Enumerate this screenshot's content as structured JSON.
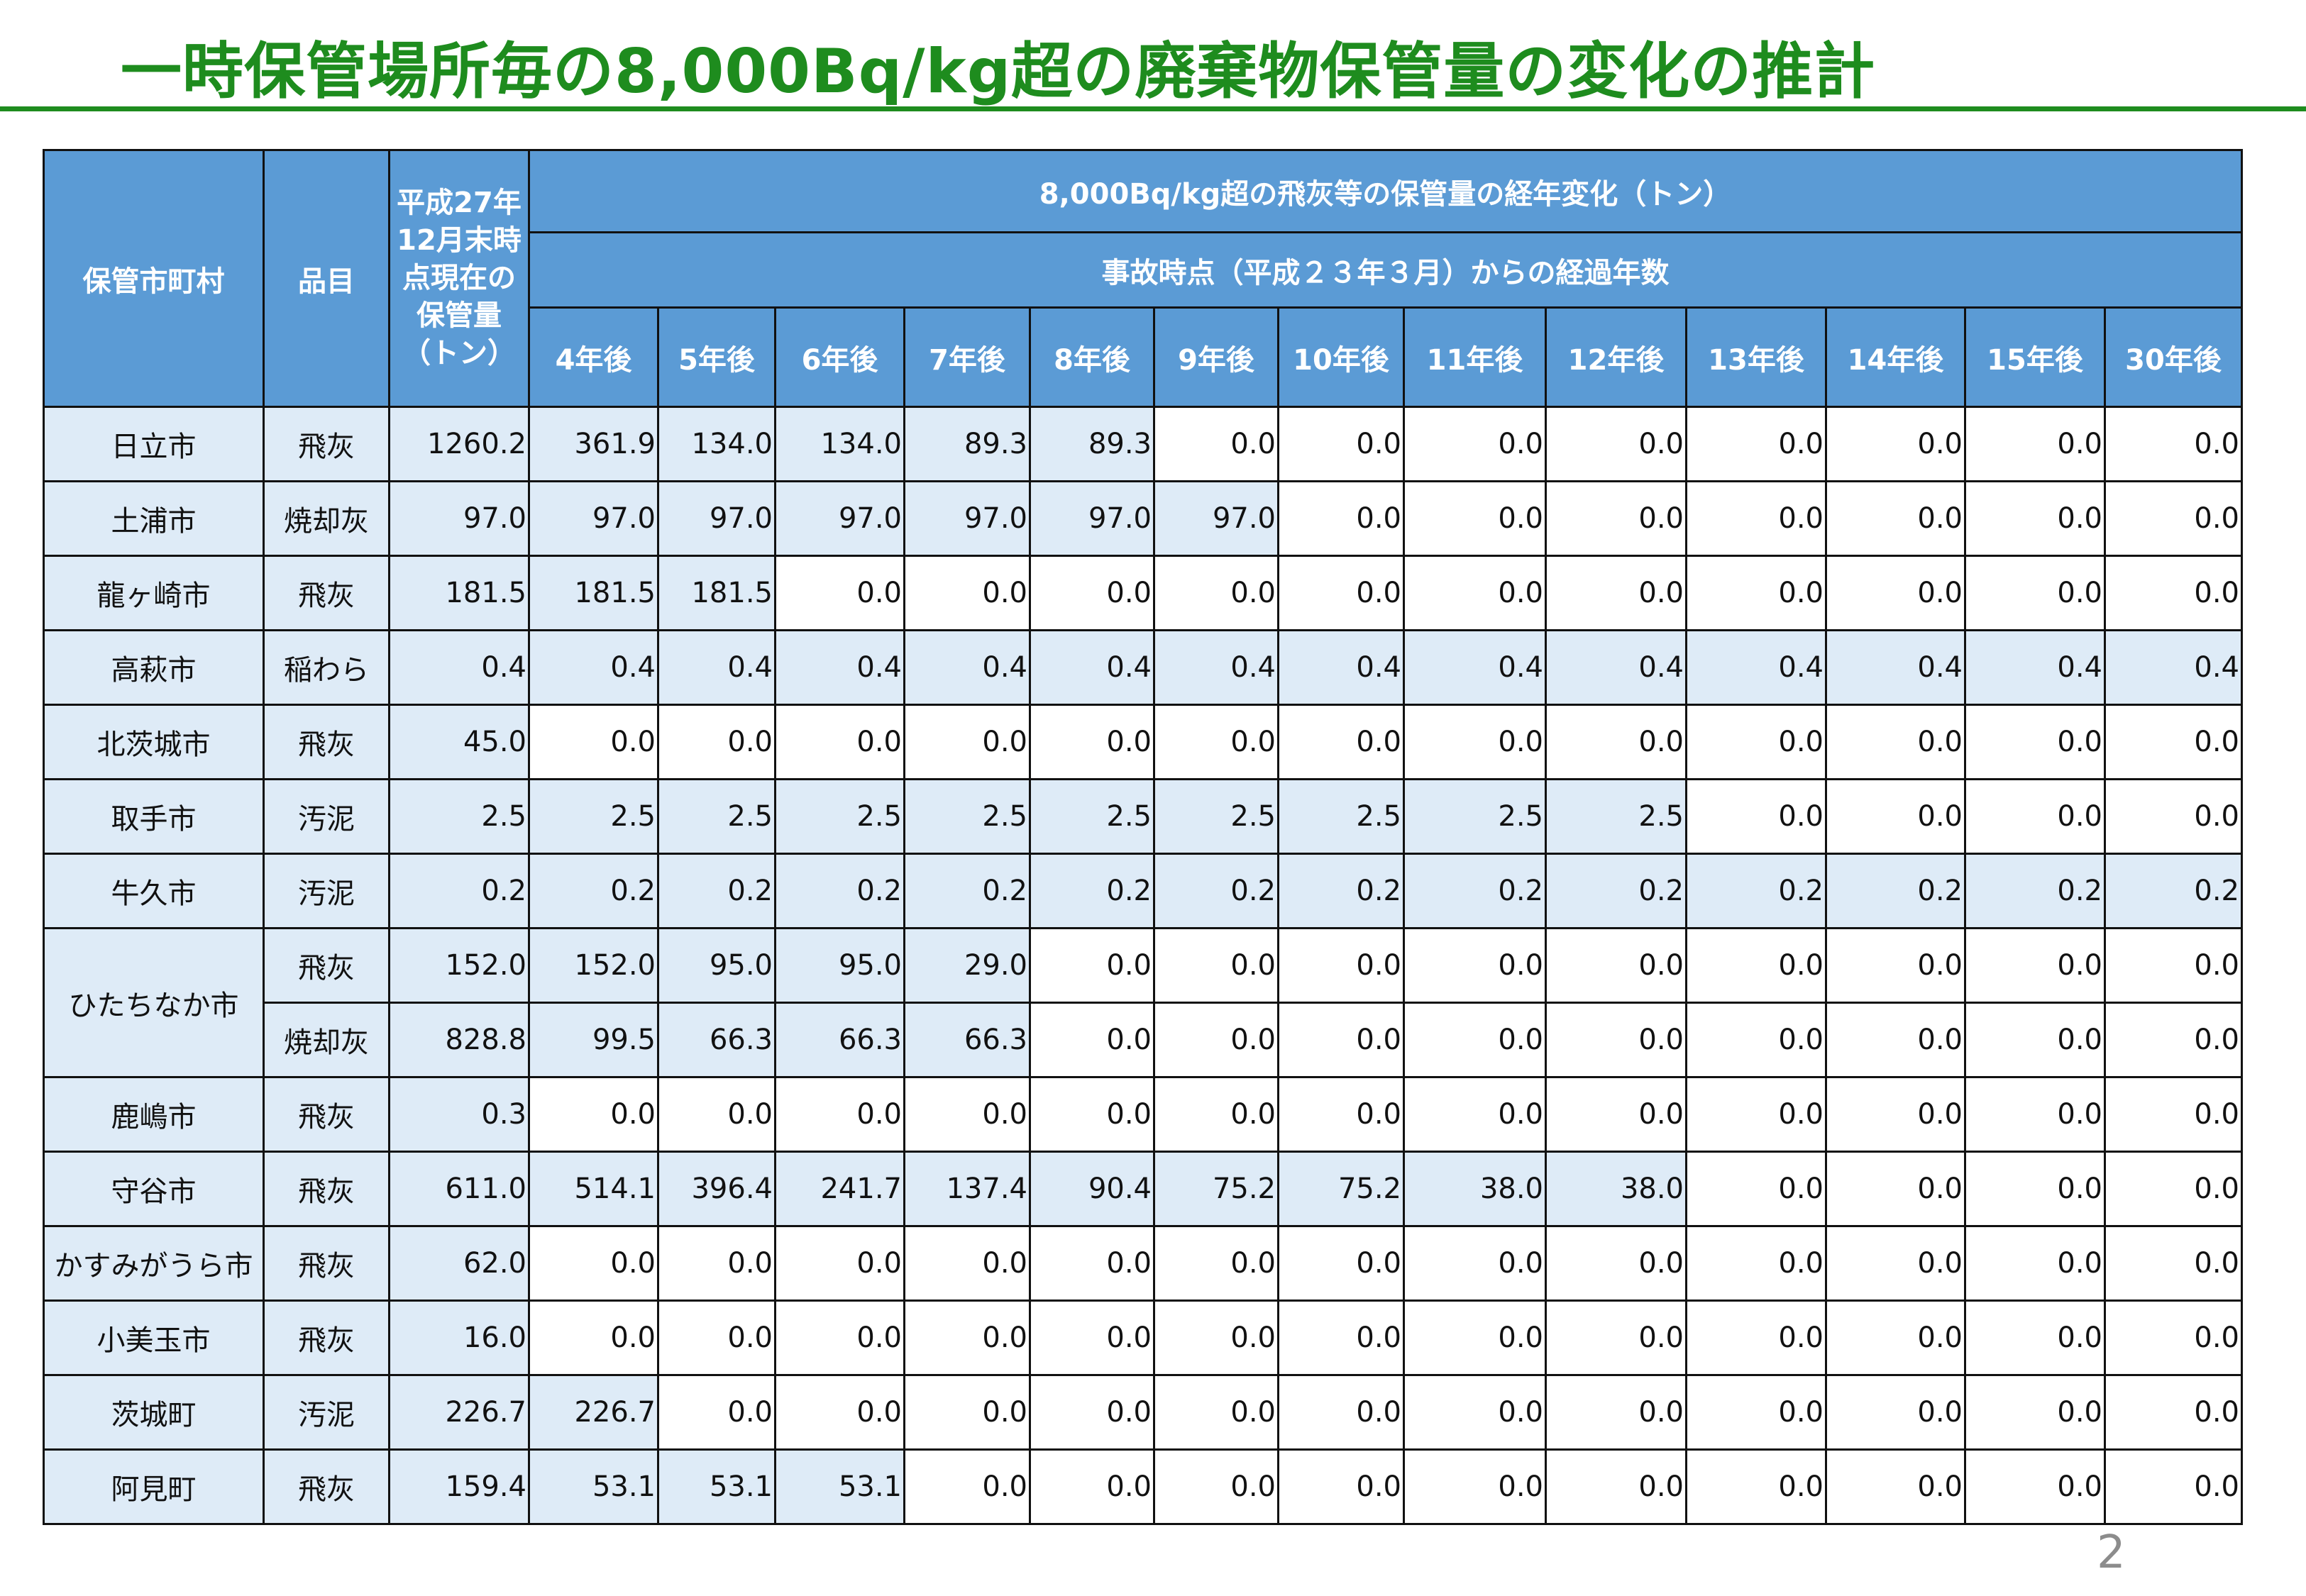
{
  "title": "一時保管場所毎の8,000Bq/kg超の廃棄物保管量の変化の推計",
  "header": {
    "municipality": "保管市町村",
    "item": "品目",
    "stock": "平成27年12月末時点現在の保管量（トン）",
    "group_title": "8,000Bq/kg超の飛灰等の保管量の経年変化（トン）",
    "group_subtitle": "事故時点（平成２３年３月）からの経過年数",
    "years": [
      "4年後",
      "5年後",
      "6年後",
      "7年後",
      "8年後",
      "9年後",
      "10年後",
      "11年後",
      "12年後",
      "13年後",
      "14年後",
      "15年後",
      "30年後"
    ]
  },
  "rows": [
    {
      "municipality": "日立市",
      "item": "飛灰",
      "stock": "1260.2",
      "values": [
        "361.9",
        "134.0",
        "134.0",
        "89.3",
        "89.3",
        "0.0",
        "0.0",
        "0.0",
        "0.0",
        "0.0",
        "0.0",
        "0.0",
        "0.0"
      ]
    },
    {
      "municipality": "土浦市",
      "item": "焼却灰",
      "stock": "97.0",
      "values": [
        "97.0",
        "97.0",
        "97.0",
        "97.0",
        "97.0",
        "97.0",
        "0.0",
        "0.0",
        "0.0",
        "0.0",
        "0.0",
        "0.0",
        "0.0"
      ]
    },
    {
      "municipality": "龍ヶ崎市",
      "item": "飛灰",
      "stock": "181.5",
      "values": [
        "181.5",
        "181.5",
        "0.0",
        "0.0",
        "0.0",
        "0.0",
        "0.0",
        "0.0",
        "0.0",
        "0.0",
        "0.0",
        "0.0",
        "0.0"
      ]
    },
    {
      "municipality": "高萩市",
      "item": "稲わら",
      "stock": "0.4",
      "values": [
        "0.4",
        "0.4",
        "0.4",
        "0.4",
        "0.4",
        "0.4",
        "0.4",
        "0.4",
        "0.4",
        "0.4",
        "0.4",
        "0.4",
        "0.4"
      ]
    },
    {
      "municipality": "北茨城市",
      "item": "飛灰",
      "stock": "45.0",
      "values": [
        "0.0",
        "0.0",
        "0.0",
        "0.0",
        "0.0",
        "0.0",
        "0.0",
        "0.0",
        "0.0",
        "0.0",
        "0.0",
        "0.0",
        "0.0"
      ]
    },
    {
      "municipality": "取手市",
      "item": "汚泥",
      "stock": "2.5",
      "values": [
        "2.5",
        "2.5",
        "2.5",
        "2.5",
        "2.5",
        "2.5",
        "2.5",
        "2.5",
        "2.5",
        "0.0",
        "0.0",
        "0.0",
        "0.0"
      ]
    },
    {
      "municipality": "牛久市",
      "item": "汚泥",
      "stock": "0.2",
      "values": [
        "0.2",
        "0.2",
        "0.2",
        "0.2",
        "0.2",
        "0.2",
        "0.2",
        "0.2",
        "0.2",
        "0.2",
        "0.2",
        "0.2",
        "0.2"
      ]
    },
    {
      "municipality": "ひたちなか市",
      "item": "飛灰",
      "stock": "152.0",
      "values": [
        "152.0",
        "95.0",
        "95.0",
        "29.0",
        "0.0",
        "0.0",
        "0.0",
        "0.0",
        "0.0",
        "0.0",
        "0.0",
        "0.0",
        "0.0"
      ]
    },
    {
      "municipality": "",
      "item": "焼却灰",
      "stock": "828.8",
      "values": [
        "99.5",
        "66.3",
        "66.3",
        "66.3",
        "0.0",
        "0.0",
        "0.0",
        "0.0",
        "0.0",
        "0.0",
        "0.0",
        "0.0",
        "0.0"
      ]
    },
    {
      "municipality": "鹿嶋市",
      "item": "飛灰",
      "stock": "0.3",
      "values": [
        "0.0",
        "0.0",
        "0.0",
        "0.0",
        "0.0",
        "0.0",
        "0.0",
        "0.0",
        "0.0",
        "0.0",
        "0.0",
        "0.0",
        "0.0"
      ]
    },
    {
      "municipality": "守谷市",
      "item": "飛灰",
      "stock": "611.0",
      "values": [
        "514.1",
        "396.4",
        "241.7",
        "137.4",
        "90.4",
        "75.2",
        "75.2",
        "38.0",
        "38.0",
        "0.0",
        "0.0",
        "0.0",
        "0.0"
      ]
    },
    {
      "municipality": "かすみがうら市",
      "item": "飛灰",
      "stock": "62.0",
      "values": [
        "0.0",
        "0.0",
        "0.0",
        "0.0",
        "0.0",
        "0.0",
        "0.0",
        "0.0",
        "0.0",
        "0.0",
        "0.0",
        "0.0",
        "0.0"
      ]
    },
    {
      "municipality": "小美玉市",
      "item": "飛灰",
      "stock": "16.0",
      "values": [
        "0.0",
        "0.0",
        "0.0",
        "0.0",
        "0.0",
        "0.0",
        "0.0",
        "0.0",
        "0.0",
        "0.0",
        "0.0",
        "0.0",
        "0.0"
      ]
    },
    {
      "municipality": "茨城町",
      "item": "汚泥",
      "stock": "226.7",
      "values": [
        "226.7",
        "0.0",
        "0.0",
        "0.0",
        "0.0",
        "0.0",
        "0.0",
        "0.0",
        "0.0",
        "0.0",
        "0.0",
        "0.0",
        "0.0"
      ]
    },
    {
      "municipality": "阿見町",
      "item": "飛灰",
      "stock": "159.4",
      "values": [
        "53.1",
        "53.1",
        "53.1",
        "0.0",
        "0.0",
        "0.0",
        "0.0",
        "0.0",
        "0.0",
        "0.0",
        "0.0",
        "0.0",
        "0.0"
      ]
    }
  ],
  "page_number": "2",
  "colors": {
    "title_green": "#1e8c1e",
    "header_blue": "#5b9bd5",
    "highlight_light_blue": "#deebf7"
  }
}
